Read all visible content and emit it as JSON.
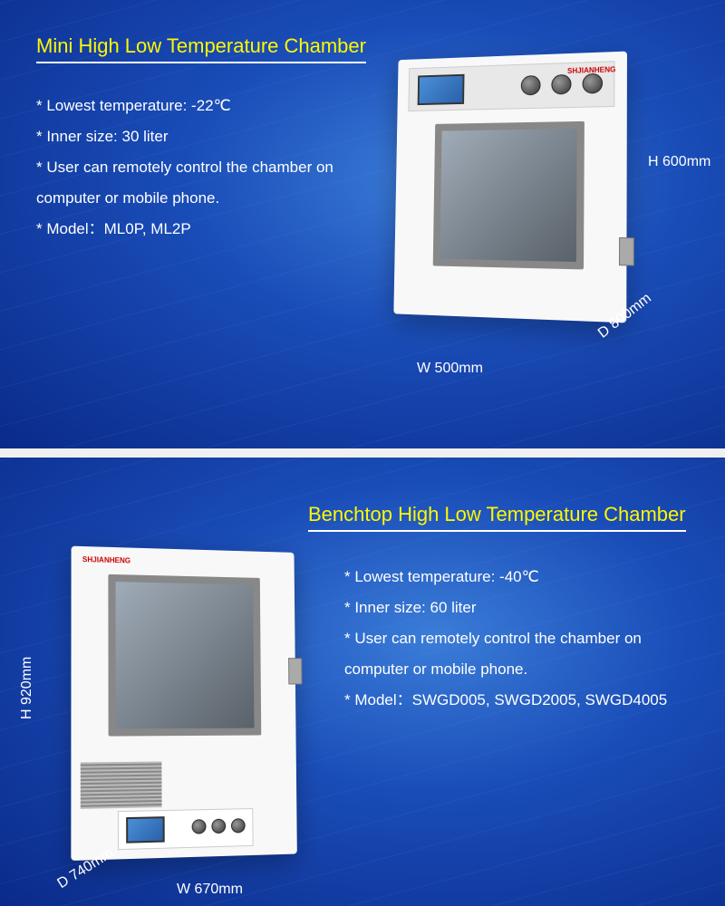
{
  "panel1": {
    "title": "Mini High Low Temperature Chamber",
    "specs": [
      "* Lowest temperature: -22℃",
      "* Inner size: 30 liter",
      "* User can remotely control the chamber on computer or mobile phone.",
      "* Model：ML0P, ML2P"
    ],
    "dimensions": {
      "height": "H 600mm",
      "depth": "D 800mm",
      "width": "W 500mm"
    },
    "brand": "SHJIANHENG"
  },
  "panel2": {
    "title": "Benchtop High Low Temperature Chamber",
    "specs": [
      "* Lowest temperature: -40℃",
      "* Inner size: 60 liter",
      "* User can remotely control the chamber on computer or mobile phone.",
      "* Model：SWGD005, SWGD2005, SWGD4005"
    ],
    "dimensions": {
      "height": "H 920mm",
      "depth": "D 740mm",
      "width": "W 670mm"
    },
    "brand": "SHJIANHENG"
  },
  "colors": {
    "title_color": "#fff700",
    "text_color": "#ffffff",
    "bg_gradient_start": "#3b7dd8",
    "bg_gradient_mid": "#1a4db8",
    "bg_gradient_end": "#0a2a8a",
    "underline": "#ffffff"
  },
  "typography": {
    "title_fontsize": 22,
    "spec_fontsize": 17,
    "dim_fontsize": 16
  }
}
